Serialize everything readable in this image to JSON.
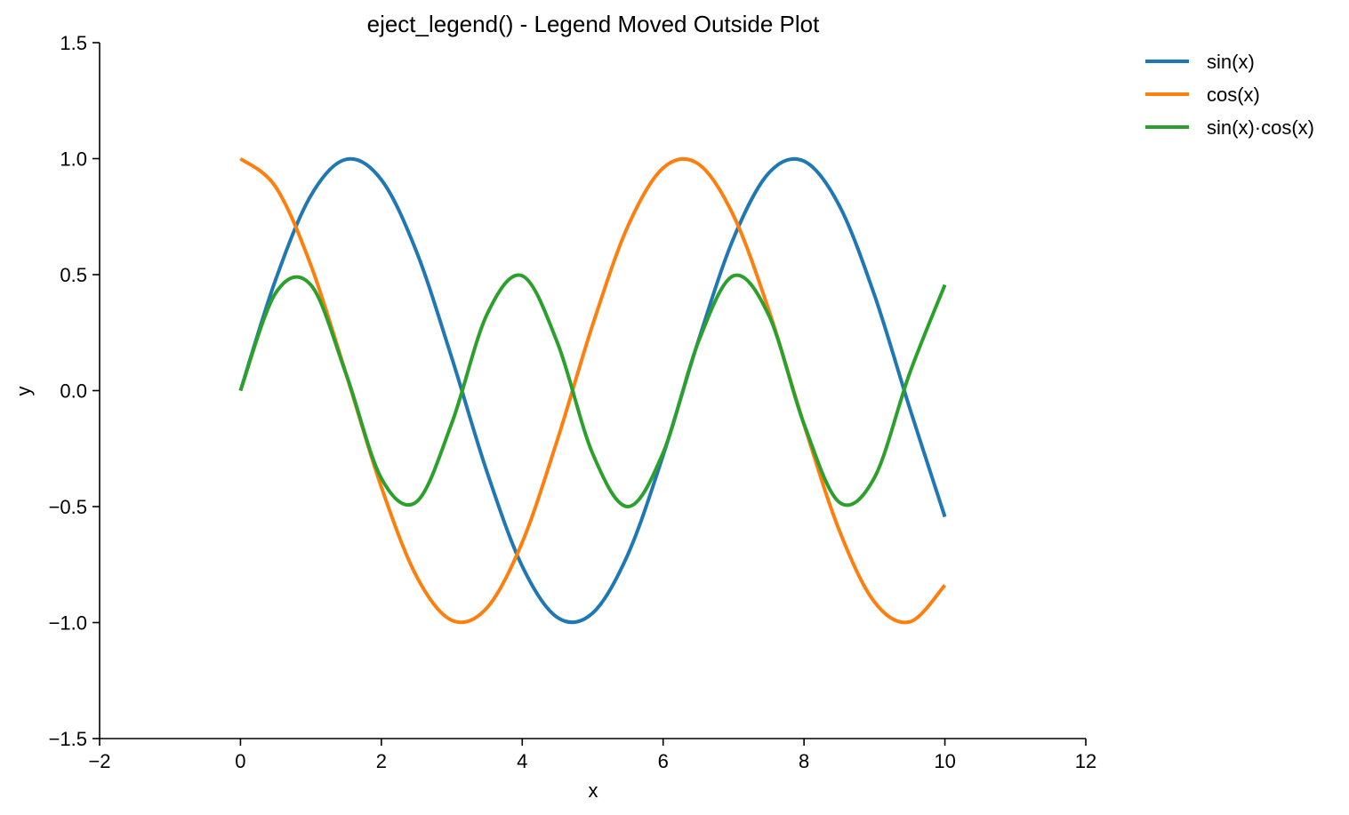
{
  "chart_data": {
    "type": "line",
    "title": "eject_legend() - Legend Moved Outside Plot",
    "xlabel": "x",
    "ylabel": "y",
    "xlim": [
      -2,
      12
    ],
    "ylim": [
      -1.5,
      1.5
    ],
    "xticks": [
      -2,
      0,
      2,
      4,
      6,
      8,
      10,
      12
    ],
    "yticks": [
      -1.5,
      -1.0,
      -0.5,
      0.0,
      0.5,
      1.0,
      1.5
    ],
    "xtick_labels": [
      "−2",
      "0",
      "2",
      "4",
      "6",
      "8",
      "10",
      "12"
    ],
    "ytick_labels": [
      "−1.5",
      "−1.0",
      "−0.5",
      "0.0",
      "0.5",
      "1.0",
      "1.5"
    ],
    "legend_position": "outside top-right",
    "grid": false,
    "x": [
      0,
      0.5,
      1.0,
      1.5,
      2.0,
      2.5,
      3.0,
      3.5,
      4.0,
      4.5,
      5.0,
      5.5,
      6.0,
      6.5,
      7.0,
      7.5,
      8.0,
      8.5,
      9.0,
      9.5,
      10.0
    ],
    "series": [
      {
        "name": "sin(x)",
        "color": "#1f77b4",
        "values": [
          0.0,
          0.479,
          0.841,
          0.997,
          0.909,
          0.598,
          0.141,
          -0.351,
          -0.757,
          -0.978,
          -0.959,
          -0.706,
          -0.279,
          0.215,
          0.657,
          0.938,
          0.989,
          0.798,
          0.412,
          -0.075,
          -0.544
        ]
      },
      {
        "name": "cos(x)",
        "color": "#ff7f0e",
        "values": [
          1.0,
          0.878,
          0.54,
          0.071,
          -0.416,
          -0.801,
          -0.99,
          -0.936,
          -0.654,
          -0.211,
          0.284,
          0.709,
          0.96,
          0.977,
          0.754,
          0.347,
          -0.146,
          -0.602,
          -0.911,
          -0.997,
          -0.839
        ]
      },
      {
        "name": "sin(x)·cos(x)",
        "color": "#2ca02c",
        "values": [
          0.0,
          0.421,
          0.455,
          0.071,
          -0.378,
          -0.479,
          -0.14,
          0.329,
          0.495,
          0.206,
          -0.272,
          -0.5,
          -0.268,
          0.21,
          0.495,
          0.325,
          -0.144,
          -0.481,
          -0.375,
          0.075,
          0.456
        ]
      }
    ]
  }
}
